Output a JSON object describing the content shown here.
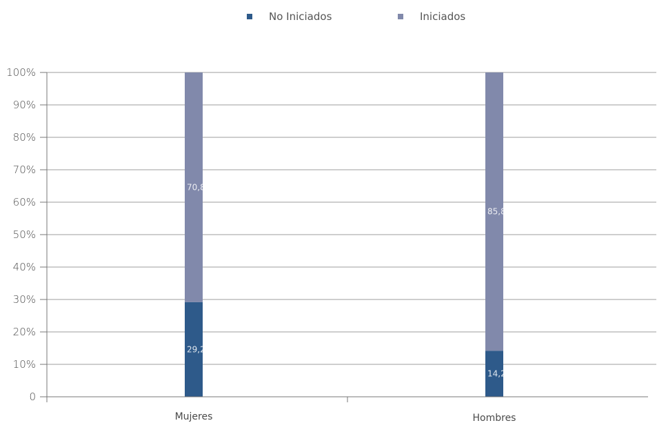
{
  "chart_data": {
    "type": "bar",
    "stacked": true,
    "categories": [
      "Mujeres",
      "Hombres"
    ],
    "series": [
      {
        "name": "No Iniciados",
        "values": [
          29.2,
          14.2
        ],
        "labels": [
          "29,2",
          "14,2"
        ],
        "color": "#2e5a8a"
      },
      {
        "name": "Iniciados",
        "values": [
          70.8,
          85.8
        ],
        "labels": [
          "70,8",
          "85,8"
        ],
        "color": "#8189ab"
      }
    ],
    "yticks": [
      "0",
      "10%",
      "20%",
      "30%",
      "40%",
      "50%",
      "60%",
      "70%",
      "80%",
      "90%",
      "100%"
    ],
    "ylim": [
      0,
      100
    ],
    "grid": true,
    "legend": "top-center"
  }
}
